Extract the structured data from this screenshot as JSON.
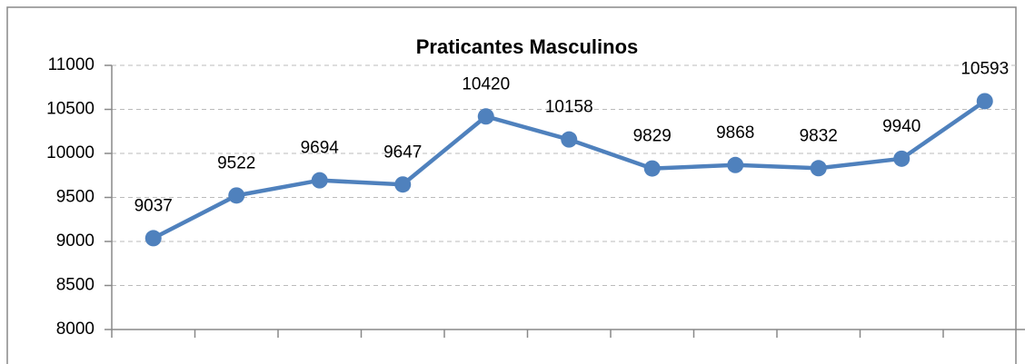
{
  "chart_data": {
    "type": "line",
    "title": "Praticantes Masculinos",
    "categories": [
      null,
      null,
      null,
      null,
      null,
      null,
      null,
      null,
      null,
      null,
      null
    ],
    "series": [
      {
        "name": "Praticantes Masculinos",
        "color": "#4f81bd",
        "values": [
          9037,
          9522,
          9694,
          9647,
          10420,
          10158,
          9829,
          9868,
          9832,
          9940,
          10593
        ]
      }
    ],
    "ylim": [
      8000,
      11000
    ],
    "yticks": [
      8000,
      8500,
      9000,
      9500,
      10000,
      10500,
      11000
    ],
    "grid": true
  }
}
